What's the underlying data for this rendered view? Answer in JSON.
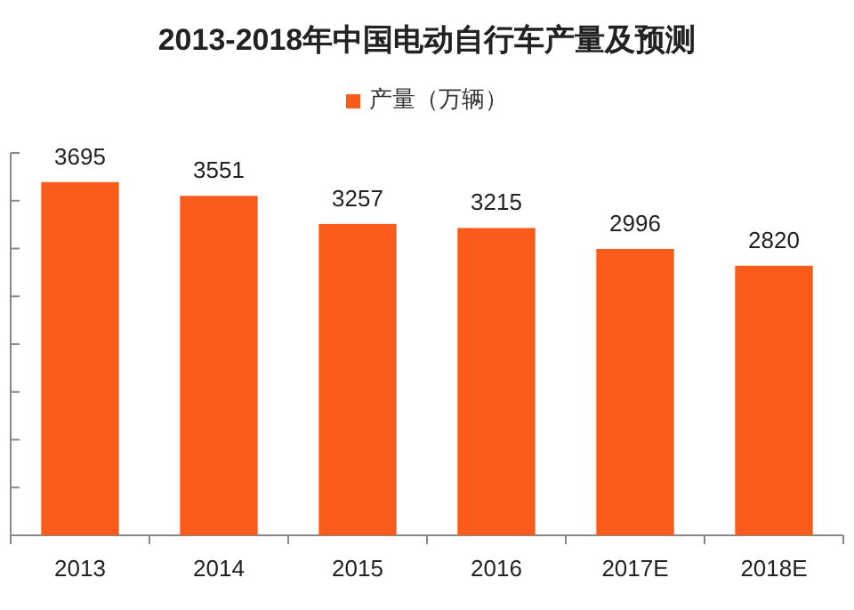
{
  "chart_data": {
    "type": "bar",
    "title": "2013-2018年中国电动自行车产量及预测",
    "categories": [
      "2013",
      "2014",
      "2015",
      "2016",
      "2017E",
      "2018E"
    ],
    "series": [
      {
        "name": "产量（万辆）",
        "color": "#fa5a1a",
        "values": [
          3695,
          3551,
          3257,
          3215,
          2996,
          2820
        ]
      }
    ],
    "ylim": [
      0,
      4000
    ],
    "yticks": [
      {
        "value": 0,
        "label": null
      },
      {
        "value": 500,
        "label": null
      },
      {
        "value": 1000,
        "label": null
      },
      {
        "value": 1500,
        "label": null
      },
      {
        "value": 2000,
        "label": null
      },
      {
        "value": 2500,
        "label": null
      },
      {
        "value": 3000,
        "label": null
      },
      {
        "value": 3500,
        "label": null
      },
      {
        "value": 4000,
        "label": null
      }
    ],
    "tick_labels": "x",
    "data_labels": true,
    "legend": "top",
    "grid": false
  }
}
